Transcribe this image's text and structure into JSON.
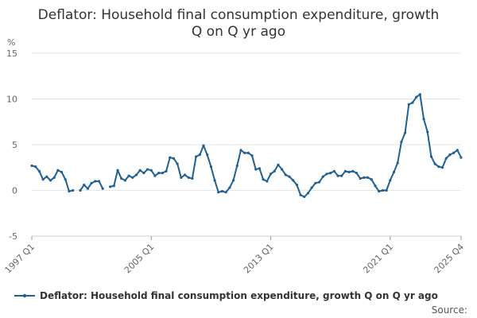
{
  "chart_data": {
    "type": "line",
    "title": "Deflator: Household final consumption expenditure, growth Q on Q yr ago",
    "title_lines": [
      "Deflator: Household final consumption expenditure, growth",
      "Q on Q yr ago"
    ],
    "ylabel": "%",
    "ylim": [
      -5,
      15
    ],
    "yticks": [
      -5,
      0,
      5,
      10,
      15
    ],
    "xlabel": "",
    "x_tick_labels": [
      {
        "label": "1997 Q1",
        "index": 0
      },
      {
        "label": "2005 Q1",
        "index": 32
      },
      {
        "label": "2013 Q1",
        "index": 64
      },
      {
        "label": "2021 Q1",
        "index": 96
      },
      {
        "label": "2025 Q4",
        "index": 115
      }
    ],
    "source_label": "Source:",
    "legend": "Deflator: Household final consumption expenditure, growth Q on Q yr ago",
    "series": [
      {
        "name": "Deflator: Household final consumption expenditure, growth Q on Q yr ago",
        "color": "#206095",
        "values": [
          2.7,
          2.6,
          2.1,
          1.2,
          1.5,
          1.1,
          1.4,
          2.2,
          2.0,
          1.2,
          -0.1,
          0.0,
          null,
          0.0,
          0.6,
          0.2,
          0.8,
          1.0,
          1.0,
          0.2,
          null,
          0.4,
          0.5,
          2.2,
          1.3,
          1.1,
          1.6,
          1.4,
          1.7,
          2.2,
          1.9,
          2.3,
          2.2,
          1.6,
          1.9,
          1.9,
          2.1,
          3.6,
          3.5,
          2.9,
          1.4,
          1.7,
          1.4,
          1.3,
          3.7,
          3.9,
          4.9,
          3.9,
          2.6,
          1.1,
          -0.2,
          -0.1,
          -0.2,
          0.3,
          1.1,
          2.7,
          4.4,
          4.1,
          4.1,
          3.8,
          2.3,
          2.4,
          1.2,
          1.0,
          1.8,
          2.1,
          2.8,
          2.3,
          1.7,
          1.5,
          1.1,
          0.6,
          -0.5,
          -0.7,
          -0.3,
          0.3,
          0.8,
          0.9,
          1.5,
          1.8,
          1.9,
          2.1,
          1.6,
          1.6,
          2.1,
          2.0,
          2.1,
          1.9,
          1.3,
          1.4,
          1.4,
          1.2,
          0.5,
          -0.1,
          0.0,
          0.0,
          1.1,
          2.0,
          3.0,
          5.3,
          6.3,
          9.4,
          9.6,
          10.2,
          10.5,
          7.8,
          6.4,
          3.7,
          2.9,
          2.6,
          2.5,
          3.5,
          3.9,
          4.1,
          4.4,
          3.6
        ]
      }
    ]
  }
}
